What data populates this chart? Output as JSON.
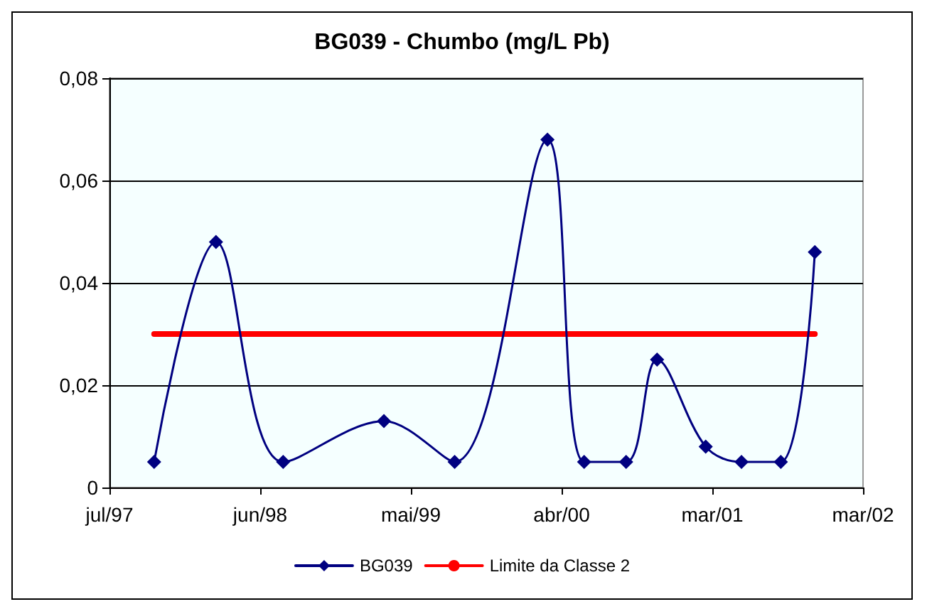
{
  "chart_data": {
    "type": "line",
    "title": "BG039 - Chumbo (mg/L Pb)",
    "xlim": [
      "1997-07-01",
      "2002-03-02"
    ],
    "xticks": [
      {
        "value": "1997-07-01",
        "label": "jul/97"
      },
      {
        "value": "1998-06-07",
        "label": "jun/98"
      },
      {
        "value": "1999-05-14",
        "label": "mai/99"
      },
      {
        "value": "2000-04-19",
        "label": "abr/00"
      },
      {
        "value": "2001-03-26",
        "label": "mar/01"
      },
      {
        "value": "2002-03-02",
        "label": "mar/02"
      }
    ],
    "ylim": [
      0,
      0.08
    ],
    "yticks": [
      {
        "value": 0,
        "label": "0"
      },
      {
        "value": 0.02,
        "label": "0,02"
      },
      {
        "value": 0.04,
        "label": "0,04"
      },
      {
        "value": 0.06,
        "label": "0,06"
      },
      {
        "value": 0.08,
        "label": "0,08"
      }
    ],
    "grid": "y",
    "legend": "bottom",
    "series": [
      {
        "name": "BG039",
        "color": "#000080",
        "marker": "diamond",
        "line_style": "solid",
        "x": [
          "1997-10-10",
          "1998-02-27",
          "1998-07-29",
          "1999-03-14",
          "1999-08-21",
          "2000-03-18",
          "2000-06-09",
          "2000-09-12",
          "2000-11-21",
          "2001-03-11",
          "2001-05-31",
          "2001-08-28",
          "2001-11-13"
        ],
        "values": [
          0.005,
          0.048,
          0.005,
          0.013,
          0.005,
          0.068,
          0.005,
          0.005,
          0.025,
          0.008,
          0.005,
          0.005,
          0.046
        ]
      },
      {
        "name": "Limite da Classe 2",
        "color": "#ff0000",
        "marker": "none",
        "line_style": "solid",
        "x": [
          "1997-10-10",
          "2001-11-13"
        ],
        "values": [
          0.03,
          0.03
        ]
      }
    ]
  }
}
